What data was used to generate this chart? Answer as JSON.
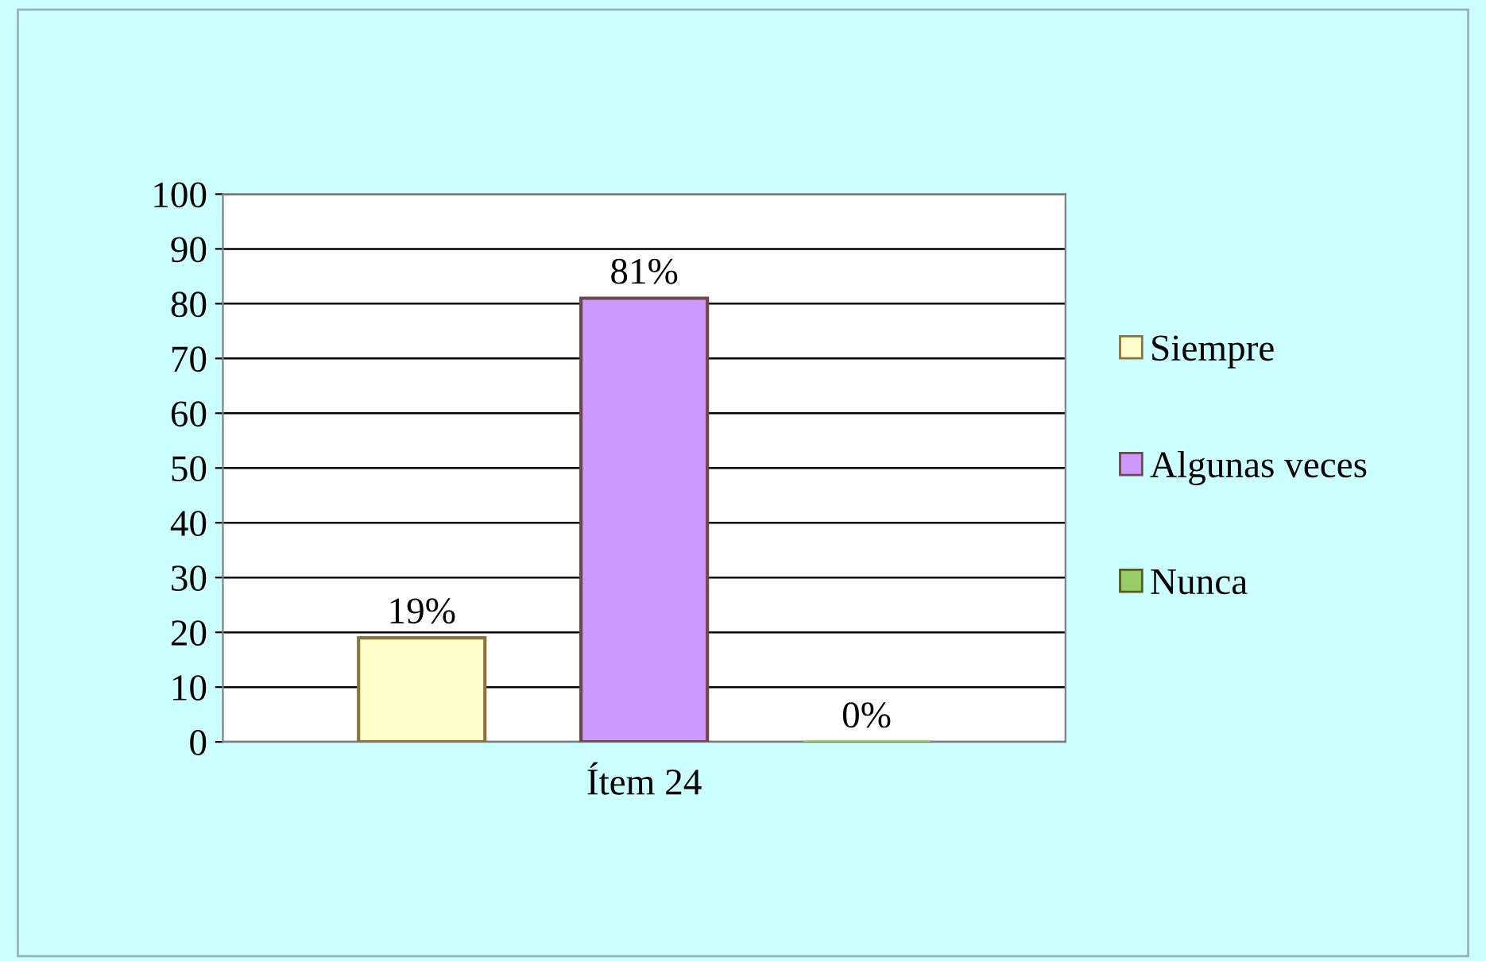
{
  "chart_data": {
    "type": "bar",
    "categories": [
      "Ítem 24"
    ],
    "series": [
      {
        "name": "Siempre",
        "color": "#ffffcc",
        "values": [
          19
        ],
        "value_labels": [
          "19%"
        ]
      },
      {
        "name": "Algunas veces",
        "color": "#cc99ff",
        "values": [
          81
        ],
        "value_labels": [
          "81%"
        ]
      },
      {
        "name": "Nunca",
        "color": "#99cc66",
        "values": [
          0
        ],
        "value_labels": [
          "0%"
        ]
      }
    ],
    "ylim": [
      0,
      100
    ],
    "yticks": [
      0,
      10,
      20,
      30,
      40,
      50,
      60,
      70,
      80,
      90,
      100
    ],
    "grid": "y",
    "legend": "right"
  }
}
